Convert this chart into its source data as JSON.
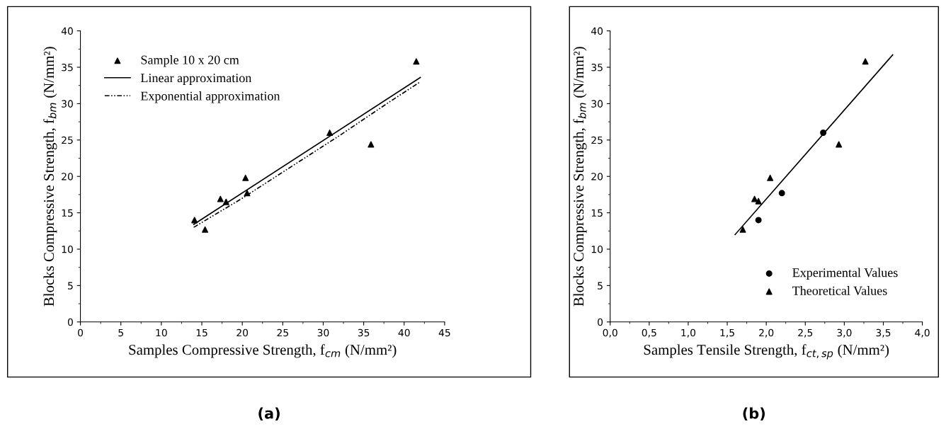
{
  "chart_data": [
    {
      "type": "scatter",
      "xlabel": "Samples Compressive Strength, f$_{cm}$ (N/mm²)",
      "ylabel": "Blocks Compressive Strength, f$_{bm}$ (N/mm²)",
      "xlim": [
        0,
        45
      ],
      "ylim": [
        0,
        40
      ],
      "xticks": [
        0,
        5,
        10,
        15,
        20,
        25,
        30,
        35,
        40,
        45
      ],
      "yticks": [
        0,
        5,
        10,
        15,
        20,
        25,
        30,
        35,
        40
      ],
      "legend": "top left",
      "grid": false,
      "annotations": [
        "(a)"
      ],
      "series": [
        {
          "name": "Sample 10 x 20 cm",
          "marker": "triangle",
          "color": "#000000",
          "x": [
            14.1,
            15.4,
            17.3,
            18.0,
            20.4,
            20.6,
            30.8,
            35.9,
            41.5
          ],
          "values": [
            14.0,
            12.7,
            16.9,
            16.5,
            19.8,
            17.7,
            26.0,
            24.4,
            35.8
          ]
        },
        {
          "name": "Linear approximation",
          "type": "line",
          "line_style": "solid",
          "color": "#000000",
          "x": [
            14,
            42
          ],
          "values": [
            13.4,
            33.6
          ]
        },
        {
          "name": "Exponential approximation",
          "type": "line",
          "line_style": "dashed",
          "color": "#000000",
          "x": [
            14,
            20,
            26,
            32,
            38,
            42
          ],
          "values": [
            13.0,
            17.0,
            21.3,
            25.6,
            30.1,
            33.0
          ]
        }
      ]
    },
    {
      "type": "scatter",
      "xlabel": "Samples Tensile Strength, f$_{ct,sp}$ (N/mm²)",
      "ylabel": "Blocks Compressive Strength, f$_{bm}$ (N/mm²)",
      "xlim": [
        0,
        4
      ],
      "ylim": [
        0,
        40
      ],
      "xticks": [
        {
          "value": 0,
          "label": "0,0"
        },
        {
          "value": 0.5,
          "label": "0,5"
        },
        {
          "value": 1,
          "label": "1,0"
        },
        {
          "value": 1.5,
          "label": "1,5"
        },
        {
          "value": 2,
          "label": "2,0"
        },
        {
          "value": 2.5,
          "label": "2,5"
        },
        {
          "value": 3,
          "label": "3,0"
        },
        {
          "value": 3.5,
          "label": "3,5"
        },
        {
          "value": 4,
          "label": "4,0"
        }
      ],
      "yticks": [
        0,
        5,
        10,
        15,
        20,
        25,
        30,
        35,
        40
      ],
      "legend": "bottom right",
      "grid": false,
      "annotations": [
        "(b)"
      ],
      "series": [
        {
          "name": "Experimental Values",
          "marker": "circle",
          "color": "#000000",
          "x": [
            1.9,
            2.2,
            2.73
          ],
          "values": [
            14.0,
            17.7,
            26.0
          ]
        },
        {
          "name": "Theoretical Values",
          "marker": "triangle",
          "color": "#000000",
          "x": [
            1.7,
            1.85,
            1.9,
            2.05,
            2.93,
            3.27
          ],
          "values": [
            12.7,
            16.9,
            16.6,
            19.8,
            24.4,
            35.8
          ]
        },
        {
          "type": "line",
          "line_style": "solid",
          "color": "#000000",
          "x": [
            1.6,
            3.62
          ],
          "values": [
            12.0,
            36.7
          ]
        }
      ]
    }
  ]
}
